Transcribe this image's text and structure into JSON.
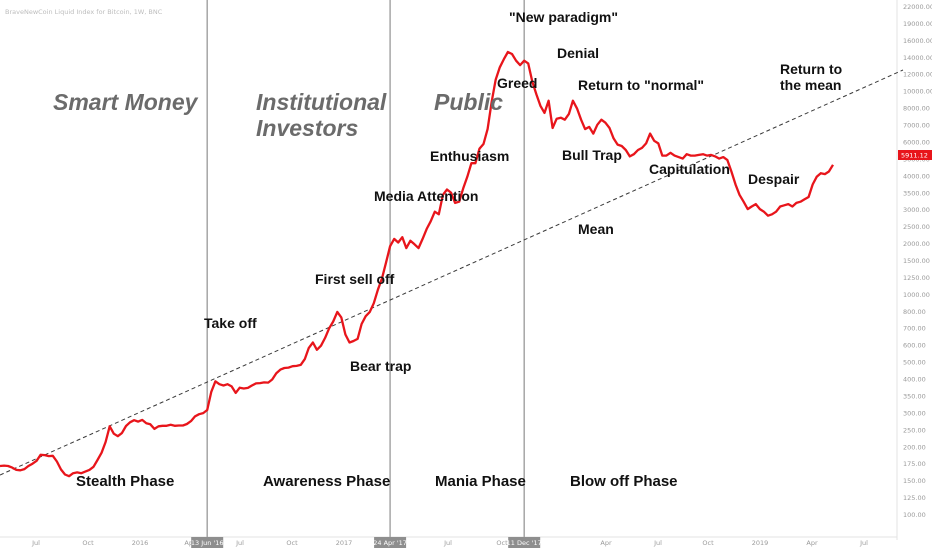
{
  "chart_data": {
    "type": "line",
    "symbol_line": "BraveNewCoin Liquid Index for Bitcoin, 1W, BNC",
    "x_ticks": [
      "Jul",
      "Oct",
      "2016",
      "Apr",
      "Jul",
      "Oct",
      "2017",
      "Apr",
      "Jul",
      "Oct",
      "Apr",
      "Jul",
      "Oct",
      "2019",
      "Apr",
      "Jul"
    ],
    "y_ticks": [
      "22000.00",
      "19000.00",
      "16000.00",
      "14000.00",
      "12000.00",
      "10000.00",
      "8000.00",
      "7000.00",
      "6000.00",
      "5000.00",
      "4000.00",
      "3500.00",
      "3000.00",
      "2500.00",
      "2000.00",
      "1500.00",
      "1250.00",
      "1000.00",
      "800.00",
      "700.00",
      "600.00",
      "500.00",
      "400.00",
      "350.00",
      "300.00",
      "250.00",
      "200.00",
      "175.00",
      "150.00",
      "125.00",
      "100.00"
    ],
    "vertical_markers": [
      {
        "label": "13 Jun '16",
        "index": 51
      },
      {
        "label": "24 Apr '17",
        "index": 96
      },
      {
        "label": "11 Dec '17",
        "index": 129
      }
    ],
    "current_price_label": "5911.12",
    "series": [
      {
        "color": "#e8151b",
        "values": [
          246,
          247,
          246,
          242,
          236,
          235,
          238,
          246,
          252,
          260,
          277,
          276,
          273,
          274,
          258,
          237,
          225,
          221,
          228,
          230,
          228,
          232,
          236,
          244,
          262,
          283,
          317,
          374,
          346,
          337,
          348,
          375,
          390,
          399,
          393,
          400,
          386,
          382,
          364,
          374,
          376,
          376,
          380,
          376,
          377,
          377,
          383,
          395,
          415,
          425,
          430,
          444,
          538,
          601,
          583,
          575,
          583,
          570,
          532,
          562,
          557,
          561,
          575,
          588,
          590,
          594,
          593,
          613,
          655,
          680,
          692,
          695,
          705,
          707,
          715,
          760,
          855,
          905,
          838,
          875,
          950,
          1050,
          1130,
          1250,
          1180,
          985,
          905,
          920,
          940,
          1100,
          1195,
          1250,
          1370,
          1580,
          1780,
          2100,
          2500,
          2700,
          2600,
          2750,
          2450,
          2650,
          2550,
          2450,
          2700,
          3000,
          3250,
          3600,
          3500,
          4300,
          4550,
          4400,
          3950,
          4000,
          4600,
          5200,
          6000,
          6000,
          7000,
          7350,
          8600,
          11500,
          14500,
          16500,
          18000,
          19400,
          19000,
          17700,
          16900,
          17700,
          17200,
          14200,
          12400,
          11000,
          10200,
          11600,
          8700,
          9600,
          9700,
          9500,
          10100,
          11600,
          10700,
          9500,
          8600,
          8800,
          8200,
          9000,
          9500,
          9200,
          8700,
          7800,
          7300,
          7200,
          6900,
          6450,
          6600,
          6900,
          7050,
          7400,
          8200,
          7600,
          7400,
          6500,
          6500,
          6700,
          6500,
          6400,
          6300,
          6600,
          6500,
          6500,
          6550,
          6600,
          6500,
          6550,
          6450,
          6300,
          6400,
          6200,
          5500,
          4800,
          4300,
          4000,
          3700,
          3800,
          3900,
          3700,
          3600,
          3450,
          3500,
          3600,
          3800,
          3850,
          3900,
          3800,
          3950,
          4000,
          4100,
          4200,
          4800,
          5200,
          5400,
          5350,
          5500,
          5900
        ]
      }
    ],
    "mean_line": {
      "style": "dashed",
      "label": "Mean"
    },
    "annotations": {
      "smart_money": "Smart Money",
      "institutional_1": "Institutional",
      "institutional_2": "Investors",
      "public": "Public",
      "take_off": "Take off",
      "first_sell_off": "First sell off",
      "bear_trap": "Bear trap",
      "media_attention": "Media Attention",
      "enthusiasm": "Enthusiasm",
      "greed": "Greed",
      "new_paradigm": "\"New paradigm\"",
      "denial": "Denial",
      "return_to_normal": "Return to \"normal\"",
      "bull_trap": "Bull Trap",
      "capitulation": "Capitulation",
      "despair": "Despair",
      "return_to_mean_1": "Return to",
      "return_to_mean_2": "the mean",
      "mean": "Mean"
    },
    "phases": {
      "stealth": "Stealth Phase",
      "awareness": "Awareness Phase",
      "mania": "Mania Phase",
      "blow_off": "Blow off Phase"
    }
  }
}
